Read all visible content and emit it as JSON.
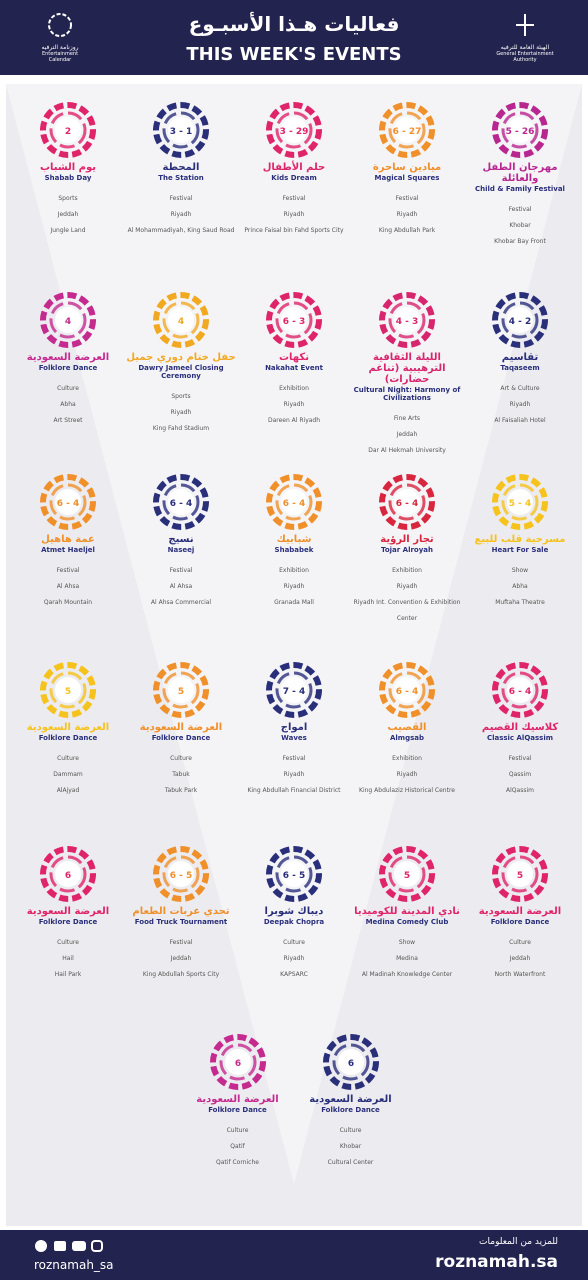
{
  "header": {
    "title_ar": "فعاليات هـذا الأسبـوع",
    "title_en": "THIS WEEK'S EVENTS",
    "left_logo_ar": "روزنامة الترفيه",
    "left_logo_en": "Entertainment Calendar",
    "right_logo_ar": "الهيئة العامة للترفيه",
    "right_logo_en": "General Entertainment Authority"
  },
  "rows": [
    [
      {
        "date": "5 - 26",
        "title_ar": "مهرجان الطفل والعائلة",
        "title_en": "Child & Family Festival",
        "color": "#b8268f",
        "details": [
          "Festival",
          "Khobar",
          "Khobar Bay Front"
        ]
      },
      {
        "date": "6 - 27",
        "title_ar": "ميادين ساحرة",
        "title_en": "Magical Squares",
        "color": "#f0902a",
        "details": [
          "Festival",
          "Riyadh",
          "King Abdullah Park"
        ]
      },
      {
        "date": "3 - 29",
        "title_ar": "حلم الأطفال",
        "title_en": "Kids Dream",
        "color": "#e0246a",
        "details": [
          "Festival",
          "Riyadh",
          "Prince Faisal bin Fahd Sports City"
        ]
      },
      {
        "date": "3 - 1",
        "title_ar": "المحطة",
        "title_en": "The Station",
        "color": "#2a2f7a",
        "details": [
          "Festival",
          "Riyadh",
          "Al Mohammadiyah, King Saud Road"
        ]
      },
      {
        "date": "2",
        "title_ar": "يوم الشباب",
        "title_en": "Shabab Day",
        "color": "#e0246a",
        "details": [
          "Sports",
          "Jeddah",
          "Jungle Land"
        ]
      }
    ],
    [
      {
        "date": "4 - 2",
        "title_ar": "تقاسيم",
        "title_en": "Taqaseem",
        "color": "#2a2f7a",
        "details": [
          "Art & Culture",
          "Riyadh",
          "Al Faisaliah Hotel"
        ]
      },
      {
        "date": "4 - 3",
        "title_ar": "الليلة الثقافية الترهيبية (تناغم حضارات)",
        "title_en": "Cultural Night: Harmony of Civilizations",
        "color": "#d8266e",
        "details": [
          "Fine Arts",
          "Jeddah",
          "Dar Al Hekmah University"
        ]
      },
      {
        "date": "6 - 3",
        "title_ar": "نكهات",
        "title_en": "Nakahat Event",
        "color": "#e0246a",
        "details": [
          "Exhibition",
          "Riyadh",
          "Dareen Al Riyadh"
        ]
      },
      {
        "date": "4",
        "title_ar": "حفل ختام دوري جميل",
        "title_en": "Dawry Jameel Closing Ceremony",
        "color": "#f2a922",
        "details": [
          "Sports",
          "Riyadh",
          "King Fahd Stadium"
        ]
      },
      {
        "date": "4",
        "title_ar": "العرضة السعودية",
        "title_en": "Folklore Dance",
        "color": "#c52a8e",
        "details": [
          "Culture",
          "Abha",
          "Art Street"
        ]
      }
    ],
    [
      {
        "date": "5 - 4",
        "title_ar": "مسرحية قلب للبيع",
        "title_en": "Heart For Sale",
        "color": "#f6c21c",
        "details": [
          "Show",
          "Abha",
          "Muftaha Theatre"
        ]
      },
      {
        "date": "6 - 4",
        "title_ar": "تجار الرؤية",
        "title_en": "Tojar Alroyah",
        "color": "#d8263f",
        "details": [
          "Exhibition",
          "Riyadh",
          "Riyadh Int. Convention & Exhibition Center"
        ]
      },
      {
        "date": "6 - 4",
        "title_ar": "شبابيك",
        "title_en": "Shababek",
        "color": "#f0902a",
        "details": [
          "Exhibition",
          "Riyadh",
          "Granada Mall"
        ]
      },
      {
        "date": "6 - 4",
        "title_ar": "نسيج",
        "title_en": "Naseej",
        "color": "#2a2f7a",
        "details": [
          "Festival",
          "Al Ahsa",
          "Al Ahsa Commercial"
        ]
      },
      {
        "date": "6 - 4",
        "title_ar": "عمة هاهيل",
        "title_en": "Atmet Haeljel",
        "color": "#f0902a",
        "details": [
          "Festival",
          "Al Ahsa",
          "Qarah Mountain"
        ]
      }
    ],
    [
      {
        "date": "6 - 4",
        "title_ar": "كلاسيك القصيم",
        "title_en": "Classic AlQassim",
        "color": "#e0246a",
        "details": [
          "Festival",
          "Qassim",
          "AlQassim"
        ]
      },
      {
        "date": "6 - 4",
        "title_ar": "القصيب",
        "title_en": "Almgsab",
        "color": "#f0902a",
        "details": [
          "Exhibition",
          "Riyadh",
          "King Abdulaziz Historical Centre"
        ]
      },
      {
        "date": "7 - 4",
        "title_ar": "امواج",
        "title_en": "Waves",
        "color": "#2a2f7a",
        "details": [
          "Festival",
          "Riyadh",
          "King Abdullah Financial District"
        ]
      },
      {
        "date": "5",
        "title_ar": "العرضة السعودية",
        "title_en": "Folklore Dance",
        "color": "#f0902a",
        "details": [
          "Culture",
          "Tabuk",
          "Tabuk Park"
        ]
      },
      {
        "date": "5",
        "title_ar": "العرضة السعودية",
        "title_en": "Folklore Dance",
        "color": "#f6c21c",
        "details": [
          "Culture",
          "Dammam",
          "AlAjyad"
        ]
      }
    ],
    [
      {
        "date": "5",
        "title_ar": "العرضة السعودية",
        "title_en": "Folklore Dance",
        "color": "#e0246a",
        "details": [
          "Culture",
          "Jeddah",
          "North Waterfront"
        ]
      },
      {
        "date": "5",
        "title_ar": "نادي المدينة للكوميديا",
        "title_en": "Medina Comedy Club",
        "color": "#e0246a",
        "details": [
          "Show",
          "Medina",
          "Al Madinah Knowledge Center"
        ]
      },
      {
        "date": "6 - 5",
        "title_ar": "ديباك شوبرا",
        "title_en": "Deepak Chopra",
        "color": "#2a2f7a",
        "details": [
          "Culture",
          "Riyadh",
          "KAPSARC"
        ]
      },
      {
        "date": "6 - 5",
        "title_ar": "تحدي عربات الطعام",
        "title_en": "Food Truck Tournament",
        "color": "#f0902a",
        "details": [
          "Festival",
          "Jeddah",
          "King Abdullah Sports City"
        ]
      },
      {
        "date": "6",
        "title_ar": "العرضة السعودية",
        "title_en": "Folklore Dance",
        "color": "#e0246a",
        "details": [
          "Culture",
          "Hail",
          "Hail Park"
        ]
      }
    ],
    [
      {
        "date": "6",
        "title_ar": "العرضة السعودية",
        "title_en": "Folklore Dance",
        "color": "#2a2f7a",
        "details": [
          "Culture",
          "Khobar",
          "Cultural Center"
        ]
      },
      {
        "date": "6",
        "title_ar": "العرضة السعودية",
        "title_en": "Folklore Dance",
        "color": "#c52a8e",
        "details": [
          "Culture",
          "Qatif",
          "Qatif Corniche"
        ]
      }
    ]
  ],
  "footer": {
    "handle": "roznamah_sa",
    "more_ar": "للمزيد من المعلومات",
    "site": "roznamah.sa"
  }
}
